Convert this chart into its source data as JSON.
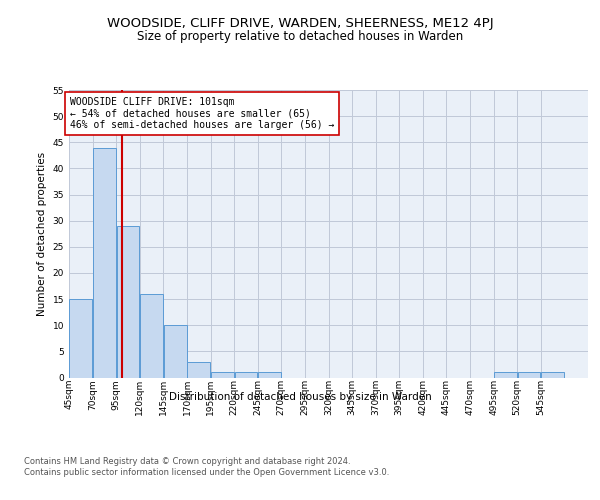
{
  "title": "WOODSIDE, CLIFF DRIVE, WARDEN, SHEERNESS, ME12 4PJ",
  "subtitle": "Size of property relative to detached houses in Warden",
  "xlabel": "Distribution of detached houses by size in Warden",
  "ylabel": "Number of detached properties",
  "bar_color": "#c6d9f0",
  "bar_edge_color": "#5b9bd5",
  "grid_color": "#c0c8d8",
  "background_color": "#eaf0f8",
  "bins": [
    45,
    70,
    95,
    120,
    145,
    170,
    195,
    220,
    245,
    270,
    295,
    320,
    345,
    370,
    395,
    420,
    445,
    470,
    495,
    520,
    545,
    570
  ],
  "bin_labels": [
    "45sqm",
    "70sqm",
    "95sqm",
    "120sqm",
    "145sqm",
    "170sqm",
    "195sqm",
    "220sqm",
    "245sqm",
    "270sqm",
    "295sqm",
    "320sqm",
    "345sqm",
    "370sqm",
    "395sqm",
    "420sqm",
    "445sqm",
    "470sqm",
    "495sqm",
    "520sqm",
    "545sqm"
  ],
  "counts": [
    15,
    44,
    29,
    16,
    10,
    3,
    1,
    1,
    1,
    0,
    0,
    0,
    0,
    0,
    0,
    0,
    0,
    0,
    1,
    1,
    1
  ],
  "vline_x": 101,
  "vline_color": "#cc0000",
  "annotation_text": "WOODSIDE CLIFF DRIVE: 101sqm\n← 54% of detached houses are smaller (65)\n46% of semi-detached houses are larger (56) →",
  "annotation_box_edge": "#cc0000",
  "ylim": [
    0,
    55
  ],
  "yticks": [
    0,
    5,
    10,
    15,
    20,
    25,
    30,
    35,
    40,
    45,
    50,
    55
  ],
  "footer": "Contains HM Land Registry data © Crown copyright and database right 2024.\nContains public sector information licensed under the Open Government Licence v3.0.",
  "title_fontsize": 9.5,
  "subtitle_fontsize": 8.5,
  "label_fontsize": 7.5,
  "tick_fontsize": 6.5,
  "footer_fontsize": 6.0,
  "annot_fontsize": 7.0
}
